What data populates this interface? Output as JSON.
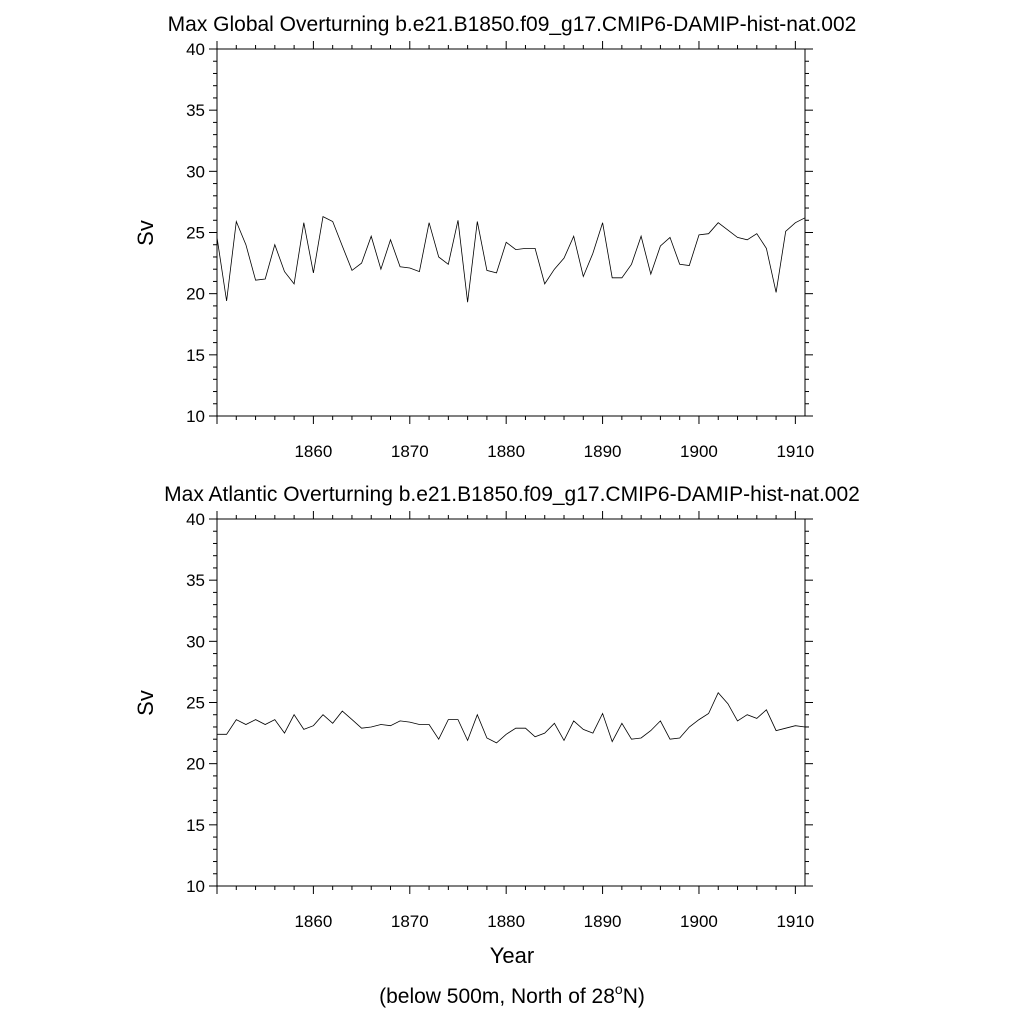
{
  "chart_data": [
    {
      "type": "line",
      "title": "Max Global Overturning b.e21.B1850.f09_g17.CMIP6-DAMIP-hist-nat.002",
      "xlabel": "",
      "ylabel": "Sv",
      "xlim": [
        1850,
        1911
      ],
      "ylim": [
        10,
        40
      ],
      "x_ticks": [
        1860,
        1870,
        1880,
        1890,
        1900,
        1910
      ],
      "y_ticks": [
        10,
        15,
        20,
        25,
        30,
        35,
        40
      ],
      "grid": false,
      "series": [
        {
          "x": [
            1850,
            1851,
            1852,
            1853,
            1854,
            1855,
            1856,
            1857,
            1858,
            1859,
            1860,
            1861,
            1862,
            1863,
            1864,
            1865,
            1866,
            1867,
            1868,
            1869,
            1870,
            1871,
            1872,
            1873,
            1874,
            1875,
            1876,
            1877,
            1878,
            1879,
            1880,
            1881,
            1882,
            1883,
            1884,
            1885,
            1886,
            1887,
            1888,
            1889,
            1890,
            1891,
            1892,
            1893,
            1894,
            1895,
            1896,
            1897,
            1898,
            1899,
            1900,
            1901,
            1902,
            1903,
            1904,
            1905,
            1906,
            1907,
            1908,
            1909,
            1910,
            1911
          ],
          "values": [
            24.6,
            19.4,
            25.9,
            24.0,
            21.1,
            21.2,
            24.0,
            21.8,
            20.8,
            25.8,
            21.7,
            26.3,
            25.9,
            23.9,
            21.9,
            22.5,
            24.7,
            22.0,
            24.4,
            22.2,
            22.1,
            21.8,
            25.8,
            23.0,
            22.4,
            26.0,
            19.3,
            25.9,
            21.9,
            21.7,
            24.2,
            23.6,
            23.7,
            23.7,
            20.8,
            22.0,
            22.9,
            24.7,
            21.4,
            23.3,
            25.8,
            21.3,
            21.3,
            22.4,
            24.7,
            21.6,
            23.9,
            24.6,
            22.4,
            22.3,
            24.8,
            24.9,
            25.8,
            25.2,
            24.6,
            24.4,
            24.9,
            23.7,
            20.1,
            25.1,
            25.8,
            26.2
          ]
        }
      ]
    },
    {
      "type": "line",
      "title": "Max Atlantic Overturning b.e21.B1850.f09_g17.CMIP6-DAMIP-hist-nat.002",
      "xlabel": "Year",
      "ylabel": "Sv",
      "xlim": [
        1850,
        1911
      ],
      "ylim": [
        10,
        40
      ],
      "x_ticks": [
        1860,
        1870,
        1880,
        1890,
        1900,
        1910
      ],
      "y_ticks": [
        10,
        15,
        20,
        25,
        30,
        35,
        40
      ],
      "grid": false,
      "series": [
        {
          "x": [
            1850,
            1851,
            1852,
            1853,
            1854,
            1855,
            1856,
            1857,
            1858,
            1859,
            1860,
            1861,
            1862,
            1863,
            1864,
            1865,
            1866,
            1867,
            1868,
            1869,
            1870,
            1871,
            1872,
            1873,
            1874,
            1875,
            1876,
            1877,
            1878,
            1879,
            1880,
            1881,
            1882,
            1883,
            1884,
            1885,
            1886,
            1887,
            1888,
            1889,
            1890,
            1891,
            1892,
            1893,
            1894,
            1895,
            1896,
            1897,
            1898,
            1899,
            1900,
            1901,
            1902,
            1903,
            1904,
            1905,
            1906,
            1907,
            1908,
            1909,
            1910,
            1911
          ],
          "values": [
            22.4,
            22.4,
            23.6,
            23.2,
            23.6,
            23.2,
            23.6,
            22.5,
            24.0,
            22.8,
            23.1,
            24.0,
            23.3,
            24.3,
            23.6,
            22.9,
            23.0,
            23.2,
            23.1,
            23.5,
            23.4,
            23.2,
            23.2,
            22.0,
            23.6,
            23.6,
            21.9,
            24.0,
            22.1,
            21.7,
            22.4,
            22.9,
            22.9,
            22.2,
            22.5,
            23.3,
            21.9,
            23.5,
            22.8,
            22.5,
            24.1,
            21.8,
            23.3,
            22.0,
            22.1,
            22.7,
            23.5,
            22.0,
            22.1,
            23.0,
            23.6,
            24.1,
            25.8,
            24.9,
            23.5,
            24.0,
            23.7,
            24.4,
            22.7,
            22.9,
            23.1,
            23.0
          ]
        }
      ]
    }
  ],
  "footnote": {
    "text": "(below 500m, North of 28",
    "superscript": "o",
    "suffix": "N)"
  }
}
